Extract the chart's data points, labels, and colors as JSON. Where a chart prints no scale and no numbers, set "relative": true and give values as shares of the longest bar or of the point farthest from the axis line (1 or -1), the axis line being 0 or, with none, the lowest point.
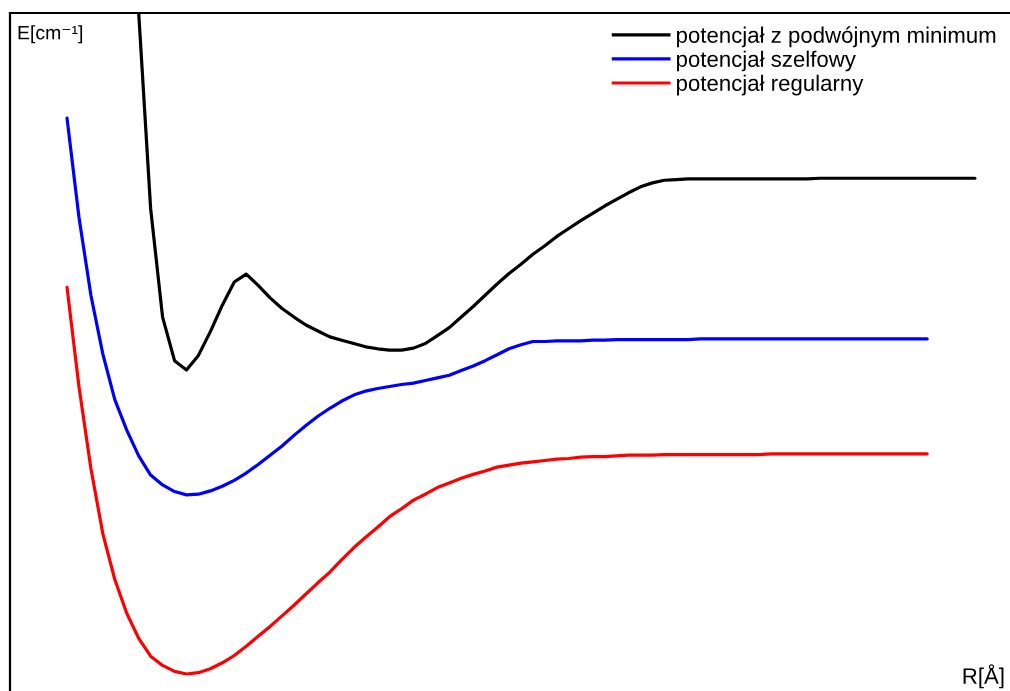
{
  "chart_data": {
    "type": "line",
    "xlabel": "R[Å]",
    "ylabel": "E[cm⁻¹]",
    "relative": true,
    "legend": "top right",
    "categories": [
      null,
      null,
      null,
      null,
      null,
      null,
      null,
      null,
      null,
      null,
      null,
      null,
      null,
      null,
      null,
      null,
      null,
      null,
      null,
      null,
      null,
      null,
      null,
      null,
      null,
      null,
      null,
      null,
      null,
      null,
      null,
      null,
      null,
      null,
      null,
      null,
      null,
      null,
      null,
      null,
      null,
      null,
      null,
      null,
      null,
      null,
      null,
      null,
      null,
      null,
      null,
      null,
      null,
      null,
      null,
      null,
      null,
      null,
      null,
      null,
      null,
      null,
      null,
      null,
      null,
      null,
      null,
      null,
      null,
      null,
      null,
      null,
      null,
      null,
      null,
      null,
      null
    ],
    "series": [
      {
        "name": "potencjał z podwójnym minimum",
        "color": "#000000",
        "values": [
          null,
          null,
          null,
          null,
          null,
          null,
          1.0,
          0.704,
          0.54,
          0.474,
          0.46,
          0.482,
          0.518,
          0.558,
          0.593,
          0.605,
          0.588,
          0.569,
          0.553,
          0.54,
          0.528,
          0.519,
          0.51,
          0.505,
          0.5,
          0.495,
          0.492,
          0.49,
          0.49,
          0.493,
          0.5,
          0.512,
          0.524,
          0.54,
          0.556,
          0.573,
          0.59,
          0.606,
          0.62,
          0.635,
          0.648,
          0.662,
          0.674,
          0.686,
          0.697,
          0.708,
          0.718,
          0.728,
          0.737,
          0.743,
          0.747,
          0.748,
          0.749,
          0.749,
          0.749,
          0.749,
          0.749,
          0.749,
          0.749,
          0.749,
          0.749,
          0.749,
          0.749,
          0.75,
          0.75,
          0.75,
          0.75,
          0.75,
          0.75,
          0.75,
          0.75,
          0.75,
          0.75,
          0.75,
          0.75,
          0.75,
          0.75
        ]
      },
      {
        "name": "potencjał szelfowy",
        "color": "#0000ff",
        "values": [
          0.841,
          0.691,
          0.573,
          0.484,
          0.415,
          0.369,
          0.33,
          0.301,
          0.286,
          0.276,
          0.271,
          0.272,
          0.277,
          0.284,
          0.293,
          0.304,
          0.317,
          0.331,
          0.345,
          0.361,
          0.376,
          0.39,
          0.402,
          0.413,
          0.422,
          0.428,
          0.432,
          0.435,
          0.438,
          0.44,
          0.444,
          0.448,
          0.452,
          0.459,
          0.466,
          0.474,
          0.483,
          0.492,
          0.498,
          0.503,
          0.503,
          0.504,
          0.504,
          0.504,
          0.505,
          0.505,
          0.506,
          0.506,
          0.506,
          0.506,
          0.506,
          0.506,
          0.506,
          0.507,
          0.507,
          0.507,
          0.507,
          0.507,
          0.507,
          0.507,
          0.507,
          0.507,
          0.507,
          0.507,
          0.507,
          0.507,
          0.507,
          0.507,
          0.507,
          0.507,
          0.507,
          0.507,
          0.507,
          null,
          null,
          null,
          null
        ]
      },
      {
        "name": "potencjał regularny",
        "color": "#ff0000",
        "values": [
          0.585,
          0.435,
          0.311,
          0.212,
          0.143,
          0.092,
          0.054,
          0.027,
          0.013,
          0.004,
          0.0,
          0.002,
          0.008,
          0.017,
          0.028,
          0.042,
          0.057,
          0.072,
          0.088,
          0.104,
          0.121,
          0.138,
          0.154,
          0.173,
          0.191,
          0.207,
          0.222,
          0.238,
          0.25,
          0.263,
          0.272,
          0.282,
          0.289,
          0.296,
          0.302,
          0.307,
          0.313,
          0.316,
          0.319,
          0.321,
          0.323,
          0.325,
          0.326,
          0.328,
          0.329,
          0.329,
          0.33,
          0.331,
          0.331,
          0.331,
          0.332,
          0.332,
          0.332,
          0.332,
          0.332,
          0.332,
          0.332,
          0.332,
          0.332,
          0.333,
          0.333,
          0.333,
          0.333,
          0.333,
          0.333,
          0.333,
          0.333,
          0.333,
          0.333,
          0.333,
          0.333,
          0.333,
          0.333,
          null,
          null,
          null,
          null
        ]
      }
    ]
  }
}
